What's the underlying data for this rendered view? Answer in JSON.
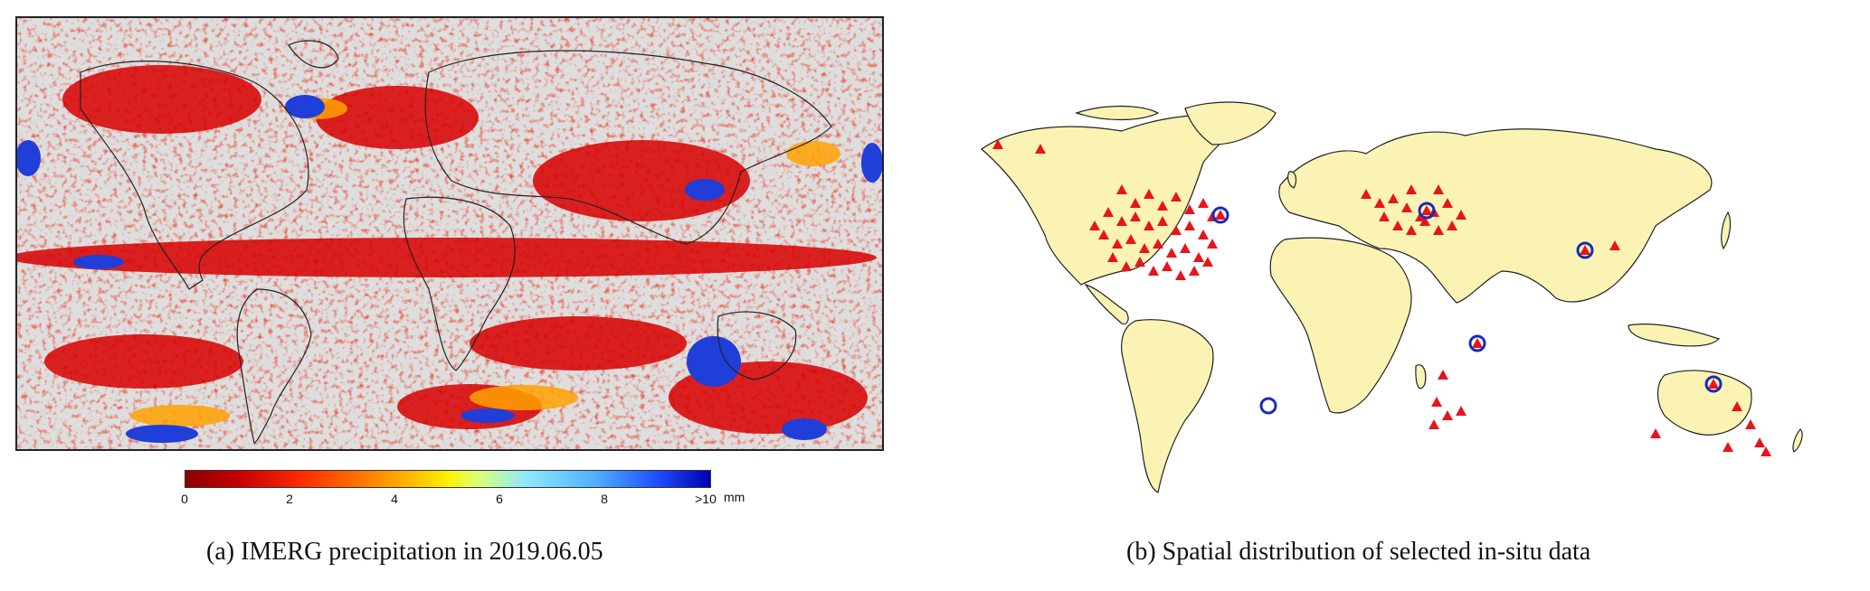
{
  "panel_a": {
    "caption": "(a)  IMERG precipitation in 2019.06.05",
    "colorbar": {
      "ticks": [
        "0",
        "2",
        "4",
        "6",
        "8",
        ">10"
      ],
      "unit": "mm",
      "colors": [
        "#8b0000",
        "#ff2a00",
        "#ffc800",
        "#8fe8ff",
        "#1f4dff",
        "#0000b0"
      ]
    },
    "map_colors": {
      "no_rain": "#dedede",
      "light": "#d40000",
      "heavy": "#1f3fd8"
    }
  },
  "panel_b": {
    "caption": "(b)  Spatial distribution of selected in-situ data",
    "land_color": "#fbf3b4",
    "marker_colors": {
      "station": "#e8141b",
      "highlight_circle": "#1a2bb8"
    },
    "highlighted_sites": [
      "north-america-east",
      "central-europe",
      "central-asia",
      "east-africa",
      "south-america",
      "northern-australia"
    ]
  }
}
